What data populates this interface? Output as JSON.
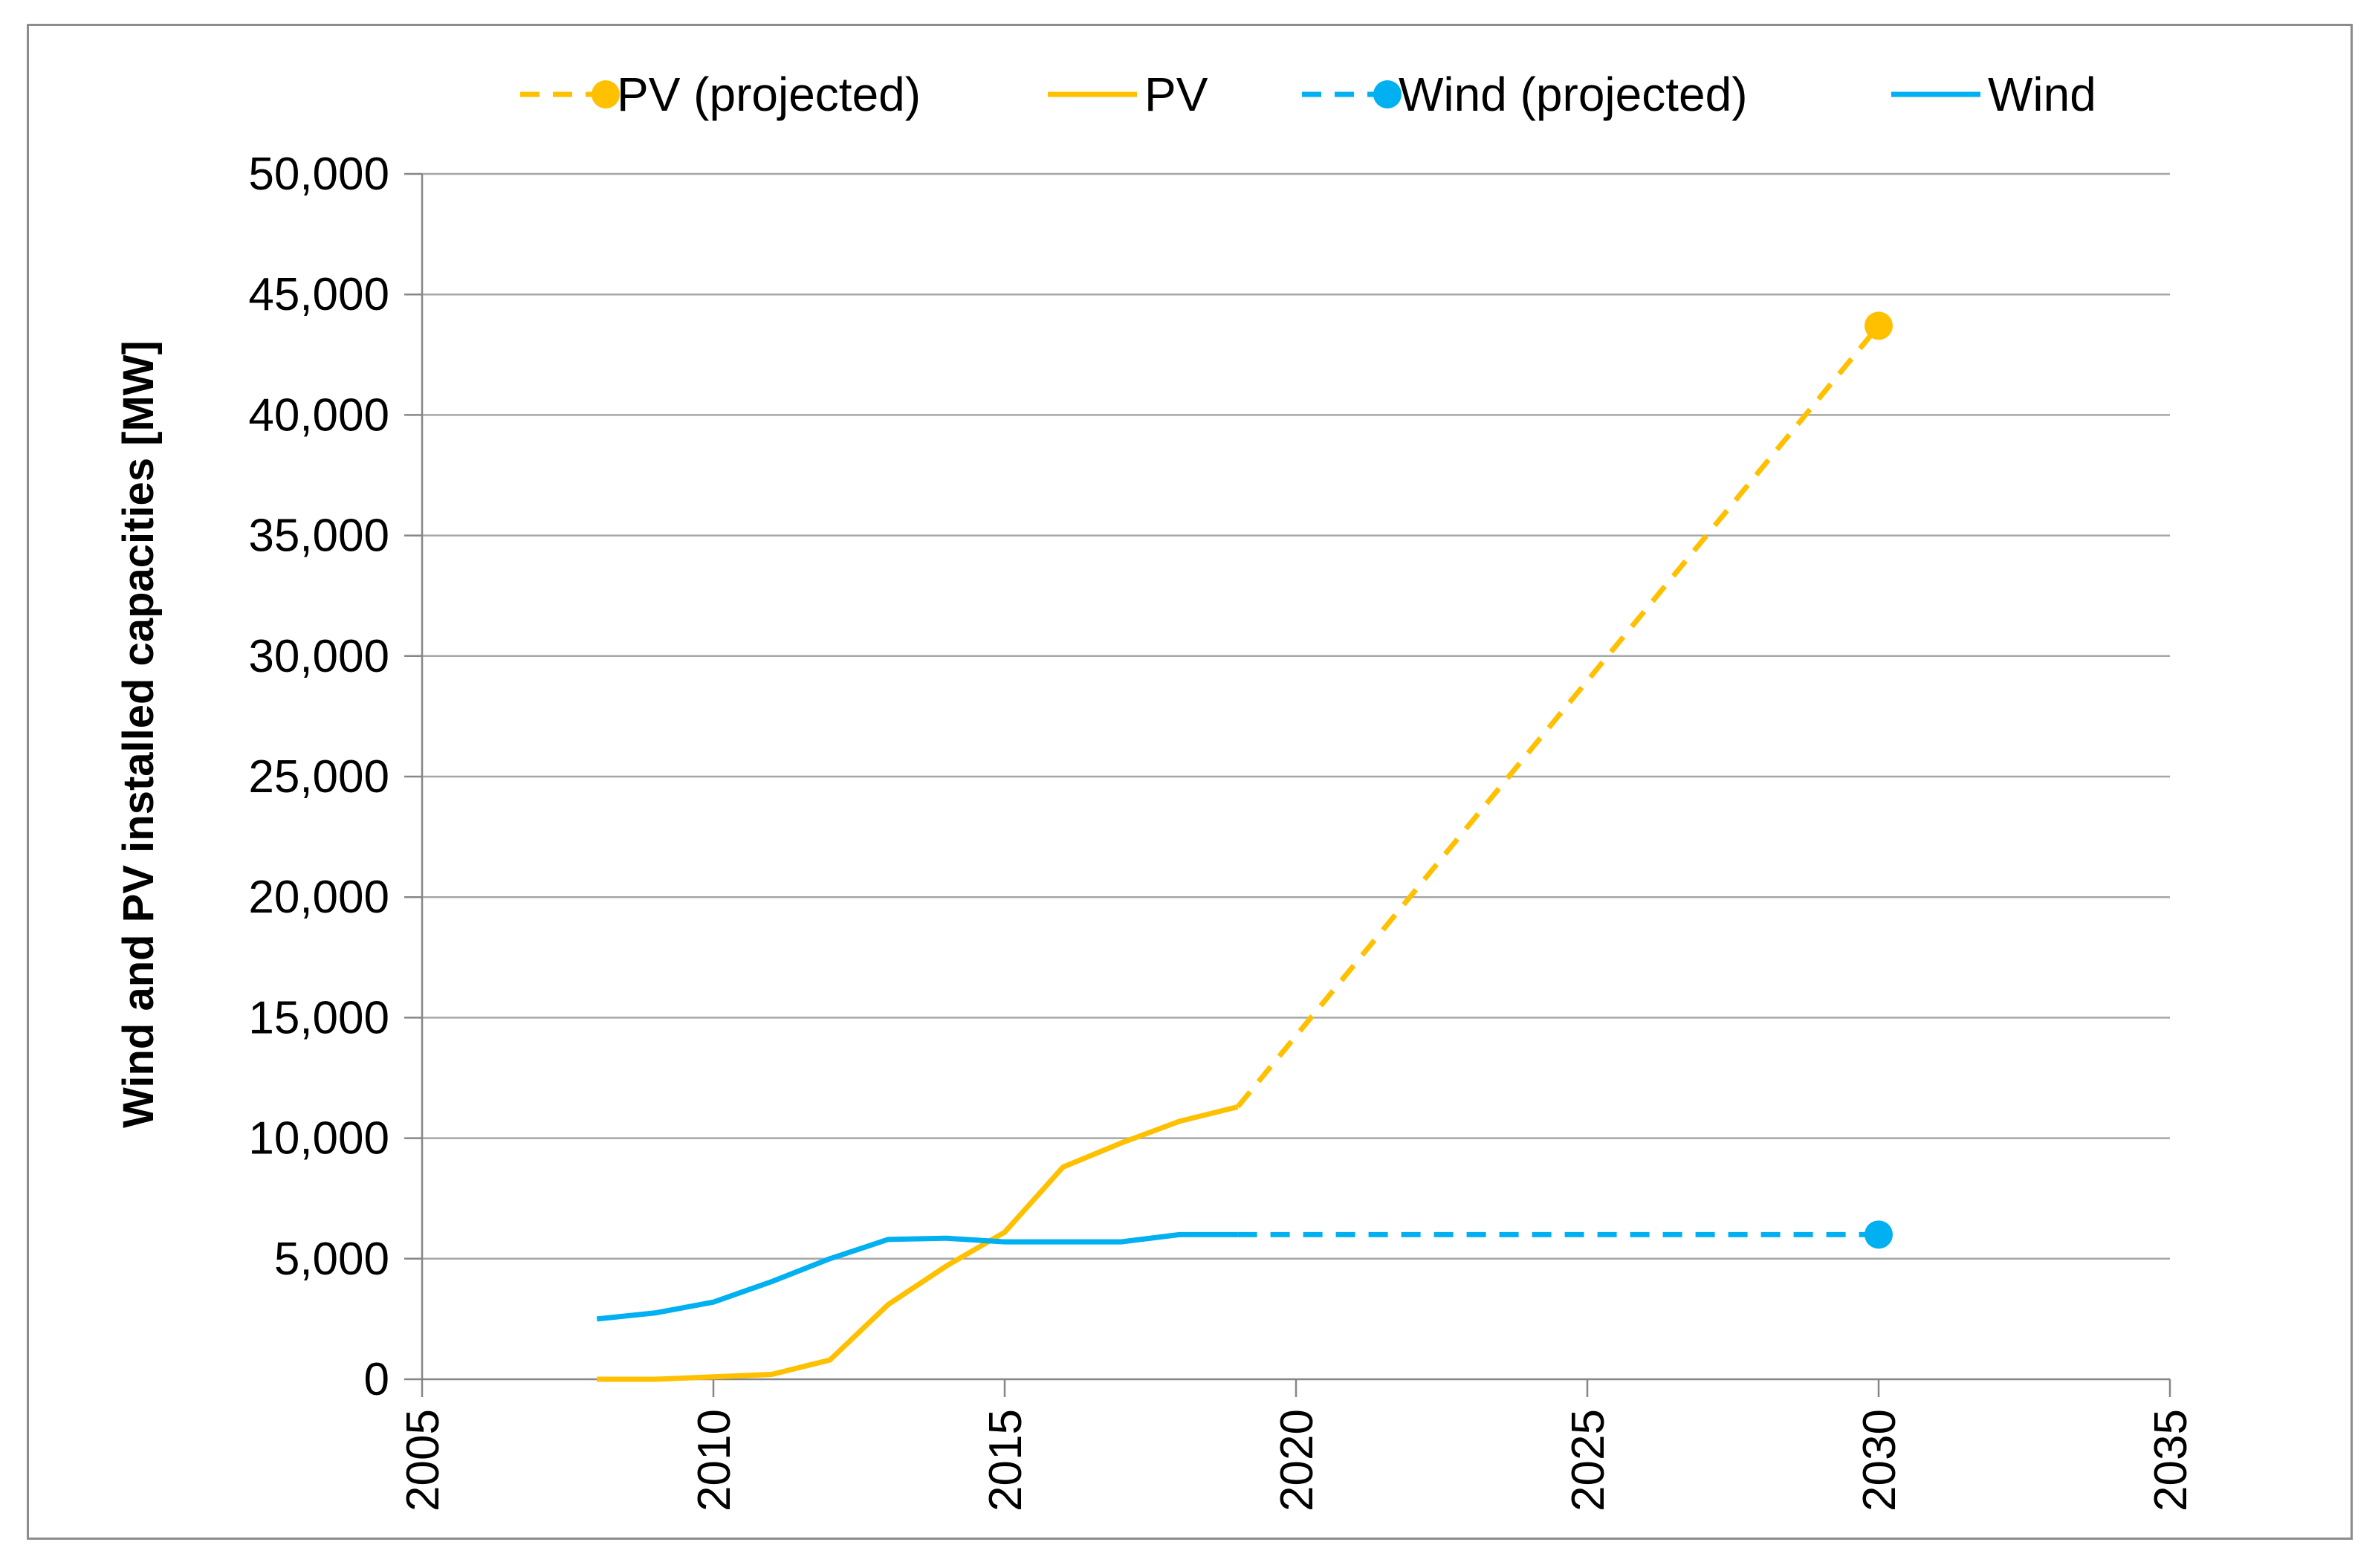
{
  "chart_data": {
    "type": "line",
    "title": "",
    "xlabel": "",
    "ylabel": "Wind and PV  installed capacities [MW]",
    "xlim": [
      2005,
      2035
    ],
    "ylim": [
      0,
      50000
    ],
    "x_ticks": [
      2005,
      2010,
      2015,
      2020,
      2025,
      2030,
      2035
    ],
    "y_ticks": [
      0,
      5000,
      10000,
      15000,
      20000,
      25000,
      30000,
      35000,
      40000,
      45000,
      50000
    ],
    "x_tick_labels": [
      "2005",
      "2010",
      "2015",
      "2020",
      "2025",
      "2030",
      "2035"
    ],
    "y_tick_labels": [
      "0",
      "5,000",
      "10,000",
      "15,000",
      "20,000",
      "25,000",
      "30,000",
      "35,000",
      "40,000",
      "45,000",
      "50,000"
    ],
    "grid": "horizontal",
    "legend_position": "top",
    "series": [
      {
        "name": "PV (projected)",
        "color": "#FFC000",
        "style": "dashed",
        "marker": "circle",
        "marker_at": [
          2030
        ],
        "x": [
          2019,
          2030
        ],
        "y": [
          11300,
          43700
        ]
      },
      {
        "name": "PV",
        "color": "#FFC000",
        "style": "solid",
        "x": [
          2008,
          2009,
          2010,
          2011,
          2012,
          2013,
          2014,
          2015,
          2016,
          2017,
          2018,
          2019
        ],
        "y": [
          0,
          0,
          100,
          200,
          800,
          3100,
          4700,
          6100,
          8800,
          9800,
          10700,
          11300
        ]
      },
      {
        "name": "Wind (projected)",
        "color": "#00B0F0",
        "style": "dashed",
        "marker": "circle",
        "marker_at": [
          2030
        ],
        "x": [
          2019,
          2030
        ],
        "y": [
          6000,
          6000
        ]
      },
      {
        "name": "Wind",
        "color": "#00B0F0",
        "style": "solid",
        "x": [
          2008,
          2009,
          2010,
          2011,
          2012,
          2013,
          2014,
          2015,
          2016,
          2017,
          2018,
          2019
        ],
        "y": [
          2500,
          2750,
          3200,
          4050,
          5000,
          5800,
          5850,
          5700,
          5700,
          5700,
          6000,
          6000
        ]
      }
    ]
  }
}
